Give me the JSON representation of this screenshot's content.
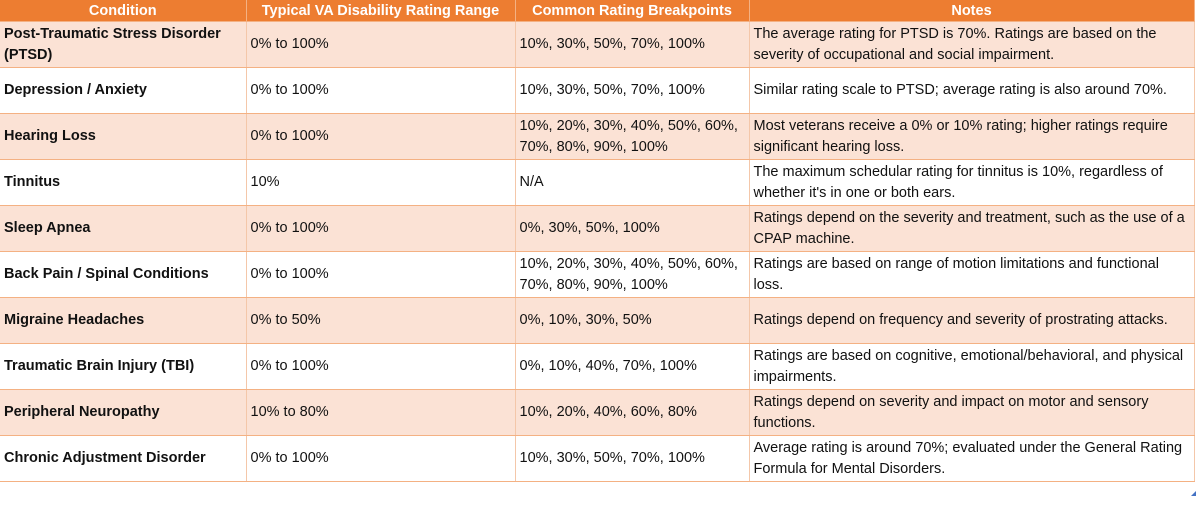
{
  "headers": [
    "Condition",
    "Typical VA Disability Rating Range",
    "Common Rating Breakpoints",
    "Notes"
  ],
  "rows": [
    {
      "condition": "Post-Traumatic Stress Disorder (PTSD)",
      "range": "0% to 100%",
      "breakpoints": "10%, 30%, 50%, 70%, 100%",
      "notes": "The average rating for PTSD is 70%. Ratings are based on the severity of occupational and social impairment."
    },
    {
      "condition": "Depression / Anxiety",
      "range": "0% to 100%",
      "breakpoints": "10%, 30%, 50%, 70%, 100%",
      "notes": "Similar rating scale to PTSD; average rating is also around 70%."
    },
    {
      "condition": "Hearing Loss",
      "range": "0% to 100%",
      "breakpoints": "10%, 20%, 30%, 40%, 50%, 60%, 70%, 80%, 90%, 100%",
      "notes": "Most veterans receive a 0% or 10% rating; higher ratings require significant hearing loss."
    },
    {
      "condition": "Tinnitus",
      "range": "10%",
      "breakpoints": "N/A",
      "notes": "The maximum schedular rating for tinnitus is 10%, regardless of whether it's in one or both ears."
    },
    {
      "condition": "Sleep Apnea",
      "range": "0% to 100%",
      "breakpoints": "0%, 30%, 50%, 100%",
      "notes": "Ratings depend on the severity and treatment, such as the use of a CPAP machine."
    },
    {
      "condition": "Back Pain / Spinal Conditions",
      "range": "0% to 100%",
      "breakpoints": "10%, 20%, 30%, 40%, 50%, 60%, 70%, 80%, 90%, 100%",
      "notes": "Ratings are based on range of motion limitations and functional loss."
    },
    {
      "condition": "Migraine Headaches",
      "range": "0% to 50%",
      "breakpoints": "0%, 10%, 30%, 50%",
      "notes": "Ratings depend on frequency and severity of prostrating attacks."
    },
    {
      "condition": "Traumatic Brain Injury (TBI)",
      "range": "0% to 100%",
      "breakpoints": "0%, 10%, 40%, 70%, 100%",
      "notes": "Ratings are based on cognitive, emotional/behavioral, and physical impairments."
    },
    {
      "condition": "Peripheral Neuropathy",
      "range": "10% to 80%",
      "breakpoints": "10%, 20%, 40%, 60%, 80%",
      "notes": "Ratings depend on severity and impact on motor and sensory functions."
    },
    {
      "condition": "Chronic Adjustment Disorder",
      "range": "0% to 100%",
      "breakpoints": "10%, 30%, 50%, 70%, 100%",
      "notes": "Average rating is around 70%; evaluated under the General Rating Formula for Mental Disorders."
    }
  ],
  "colors": {
    "header_fill": "#ed7d31",
    "header_text": "#ffffff",
    "band_fill": "#fbe2d5",
    "table_handle": "#4472c4"
  }
}
